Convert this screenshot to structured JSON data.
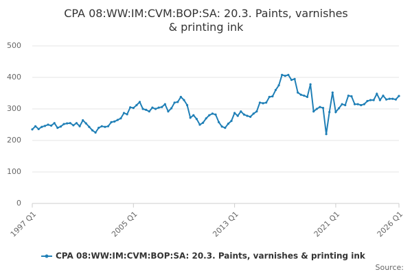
{
  "chart_data": {
    "type": "line",
    "title": "CPA 08:WW:IM:CVM:BOP:SA: 20.3. Paints, varnishes & printing ink",
    "source": "Source:",
    "categories": [
      "1997 Q1",
      null,
      null,
      null,
      null,
      null,
      null,
      null,
      null,
      null,
      null,
      null,
      null,
      null,
      null,
      null,
      null,
      null,
      null,
      null,
      null,
      null,
      null,
      null,
      null,
      null,
      null,
      null,
      null,
      null,
      null,
      null,
      "2005 Q1",
      null,
      null,
      null,
      null,
      null,
      null,
      null,
      null,
      null,
      null,
      null,
      null,
      null,
      null,
      null,
      null,
      null,
      null,
      null,
      null,
      null,
      null,
      null,
      null,
      null,
      null,
      null,
      null,
      null,
      null,
      null,
      "2013 Q1",
      null,
      null,
      null,
      null,
      null,
      null,
      null,
      null,
      null,
      null,
      null,
      null,
      null,
      null,
      null,
      null,
      null,
      null,
      null,
      null,
      null,
      null,
      null,
      null,
      null,
      null,
      null,
      null,
      null,
      null,
      null,
      "2021 Q1",
      null,
      null,
      null,
      null,
      null,
      null,
      null,
      null,
      null,
      null,
      null,
      null,
      null,
      null,
      null,
      null,
      null,
      null,
      null,
      "2026 Q1"
    ],
    "series": [
      {
        "name": "CPA 08:WW:IM:CVM:BOP:SA: 20.3. Paints, varnishes & printing ink",
        "color": "#1f7fb6",
        "values": [
          235,
          245,
          236,
          243,
          246,
          250,
          247,
          255,
          240,
          244,
          252,
          254,
          255,
          248,
          255,
          245,
          264,
          254,
          243,
          232,
          225,
          240,
          245,
          243,
          245,
          258,
          260,
          265,
          270,
          287,
          283,
          305,
          303,
          312,
          322,
          300,
          297,
          292,
          304,
          300,
          304,
          306,
          315,
          292,
          302,
          320,
          322,
          338,
          328,
          312,
          272,
          280,
          268,
          250,
          256,
          270,
          280,
          285,
          282,
          258,
          244,
          240,
          253,
          262,
          287,
          278,
          292,
          282,
          278,
          275,
          285,
          292,
          320,
          318,
          320,
          338,
          340,
          360,
          375,
          408,
          405,
          408,
          392,
          395,
          352,
          345,
          342,
          338,
          378,
          292,
          300,
          306,
          303,
          220,
          290,
          352,
          290,
          302,
          315,
          312,
          342,
          340,
          315,
          315,
          312,
          315,
          325,
          328,
          328,
          348,
          328,
          342,
          330,
          332,
          332,
          330,
          341
        ]
      }
    ],
    "ylim": [
      0,
      500
    ],
    "yticks": [
      0,
      100,
      200,
      300,
      400,
      500
    ],
    "grid": true
  }
}
